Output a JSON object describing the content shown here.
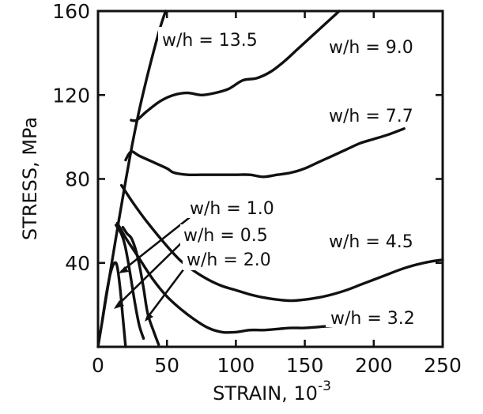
{
  "chart_data": {
    "type": "line",
    "title": "",
    "xlabel": "STRAIN, 10",
    "xlabel_exponent": "-3",
    "ylabel": "STRESS, MPa",
    "xlim": [
      0,
      250
    ],
    "ylim": [
      0,
      160
    ],
    "x_ticks": [
      "0",
      "50",
      "100",
      "150",
      "200",
      "250"
    ],
    "y_ticks": [
      "40",
      "80",
      "120",
      "160"
    ],
    "grid": false,
    "legend": "none",
    "series": [
      {
        "name": "w/h = 13.5",
        "x": [
          0,
          5,
          10,
          15,
          20,
          25,
          30,
          35,
          40,
          45,
          49
        ],
        "y": [
          0,
          20,
          40,
          60,
          79,
          97,
          113,
          127,
          140,
          152,
          160
        ]
      },
      {
        "name": "w/h = 9.0",
        "x": [
          24,
          28,
          35,
          45,
          55,
          65,
          75,
          85,
          95,
          105,
          115,
          125,
          135,
          145,
          155,
          165,
          175
        ],
        "y": [
          108,
          108,
          112,
          117,
          120,
          121,
          120,
          121,
          123,
          127,
          128,
          131,
          136,
          142,
          148,
          154,
          160
        ]
      },
      {
        "name": "w/h = 7.7",
        "x": [
          20,
          24,
          30,
          40,
          50,
          55,
          65,
          75,
          90,
          100,
          110,
          120,
          130,
          140,
          150,
          160,
          170,
          180,
          190,
          200,
          210,
          222
        ],
        "y": [
          89,
          93,
          91,
          88,
          85,
          83,
          82,
          82,
          82,
          82,
          82,
          81,
          82,
          83,
          85,
          88,
          91,
          94,
          97,
          99,
          101,
          104
        ]
      },
      {
        "name": "w/h = 4.5",
        "x": [
          17,
          25,
          35,
          50,
          60,
          70,
          80,
          90,
          100,
          110,
          120,
          130,
          140,
          150,
          160,
          170,
          180,
          190,
          200,
          210,
          220,
          230,
          240,
          250
        ],
        "y": [
          77,
          69,
          60,
          48,
          41,
          36,
          32,
          29,
          27,
          25,
          23.5,
          22.5,
          22,
          22.5,
          23.5,
          25,
          27,
          29.5,
          32,
          34.5,
          37,
          39,
          40.5,
          41.5
        ]
      },
      {
        "name": "w/h = 3.2",
        "x": [
          14,
          20,
          25,
          30,
          40,
          50,
          60,
          70,
          80,
          90,
          100,
          110,
          120,
          130,
          140,
          150,
          160,
          170
        ],
        "y": [
          59,
          52,
          47,
          42,
          32,
          24,
          18,
          13,
          9,
          7,
          7,
          8,
          8,
          8.5,
          9,
          9,
          9.5,
          10
        ]
      },
      {
        "name": "w/h = 1.0",
        "x": [
          3,
          6,
          9,
          12,
          14,
          16,
          18,
          20
        ],
        "y": [
          12,
          25,
          35,
          40,
          38,
          28,
          14,
          0
        ]
      },
      {
        "name": "w/h = 0.5",
        "x": [
          13,
          16,
          18,
          20,
          22,
          24,
          27,
          30,
          33
        ],
        "y": [
          58,
          55,
          52,
          47,
          40,
          32,
          20,
          10,
          4
        ]
      },
      {
        "name": "w/h = 2.0",
        "x": [
          18,
          21,
          24,
          27,
          30,
          33,
          36,
          40,
          44
        ],
        "y": [
          57,
          54,
          52,
          47,
          39,
          28,
          16,
          8,
          1
        ]
      }
    ]
  }
}
